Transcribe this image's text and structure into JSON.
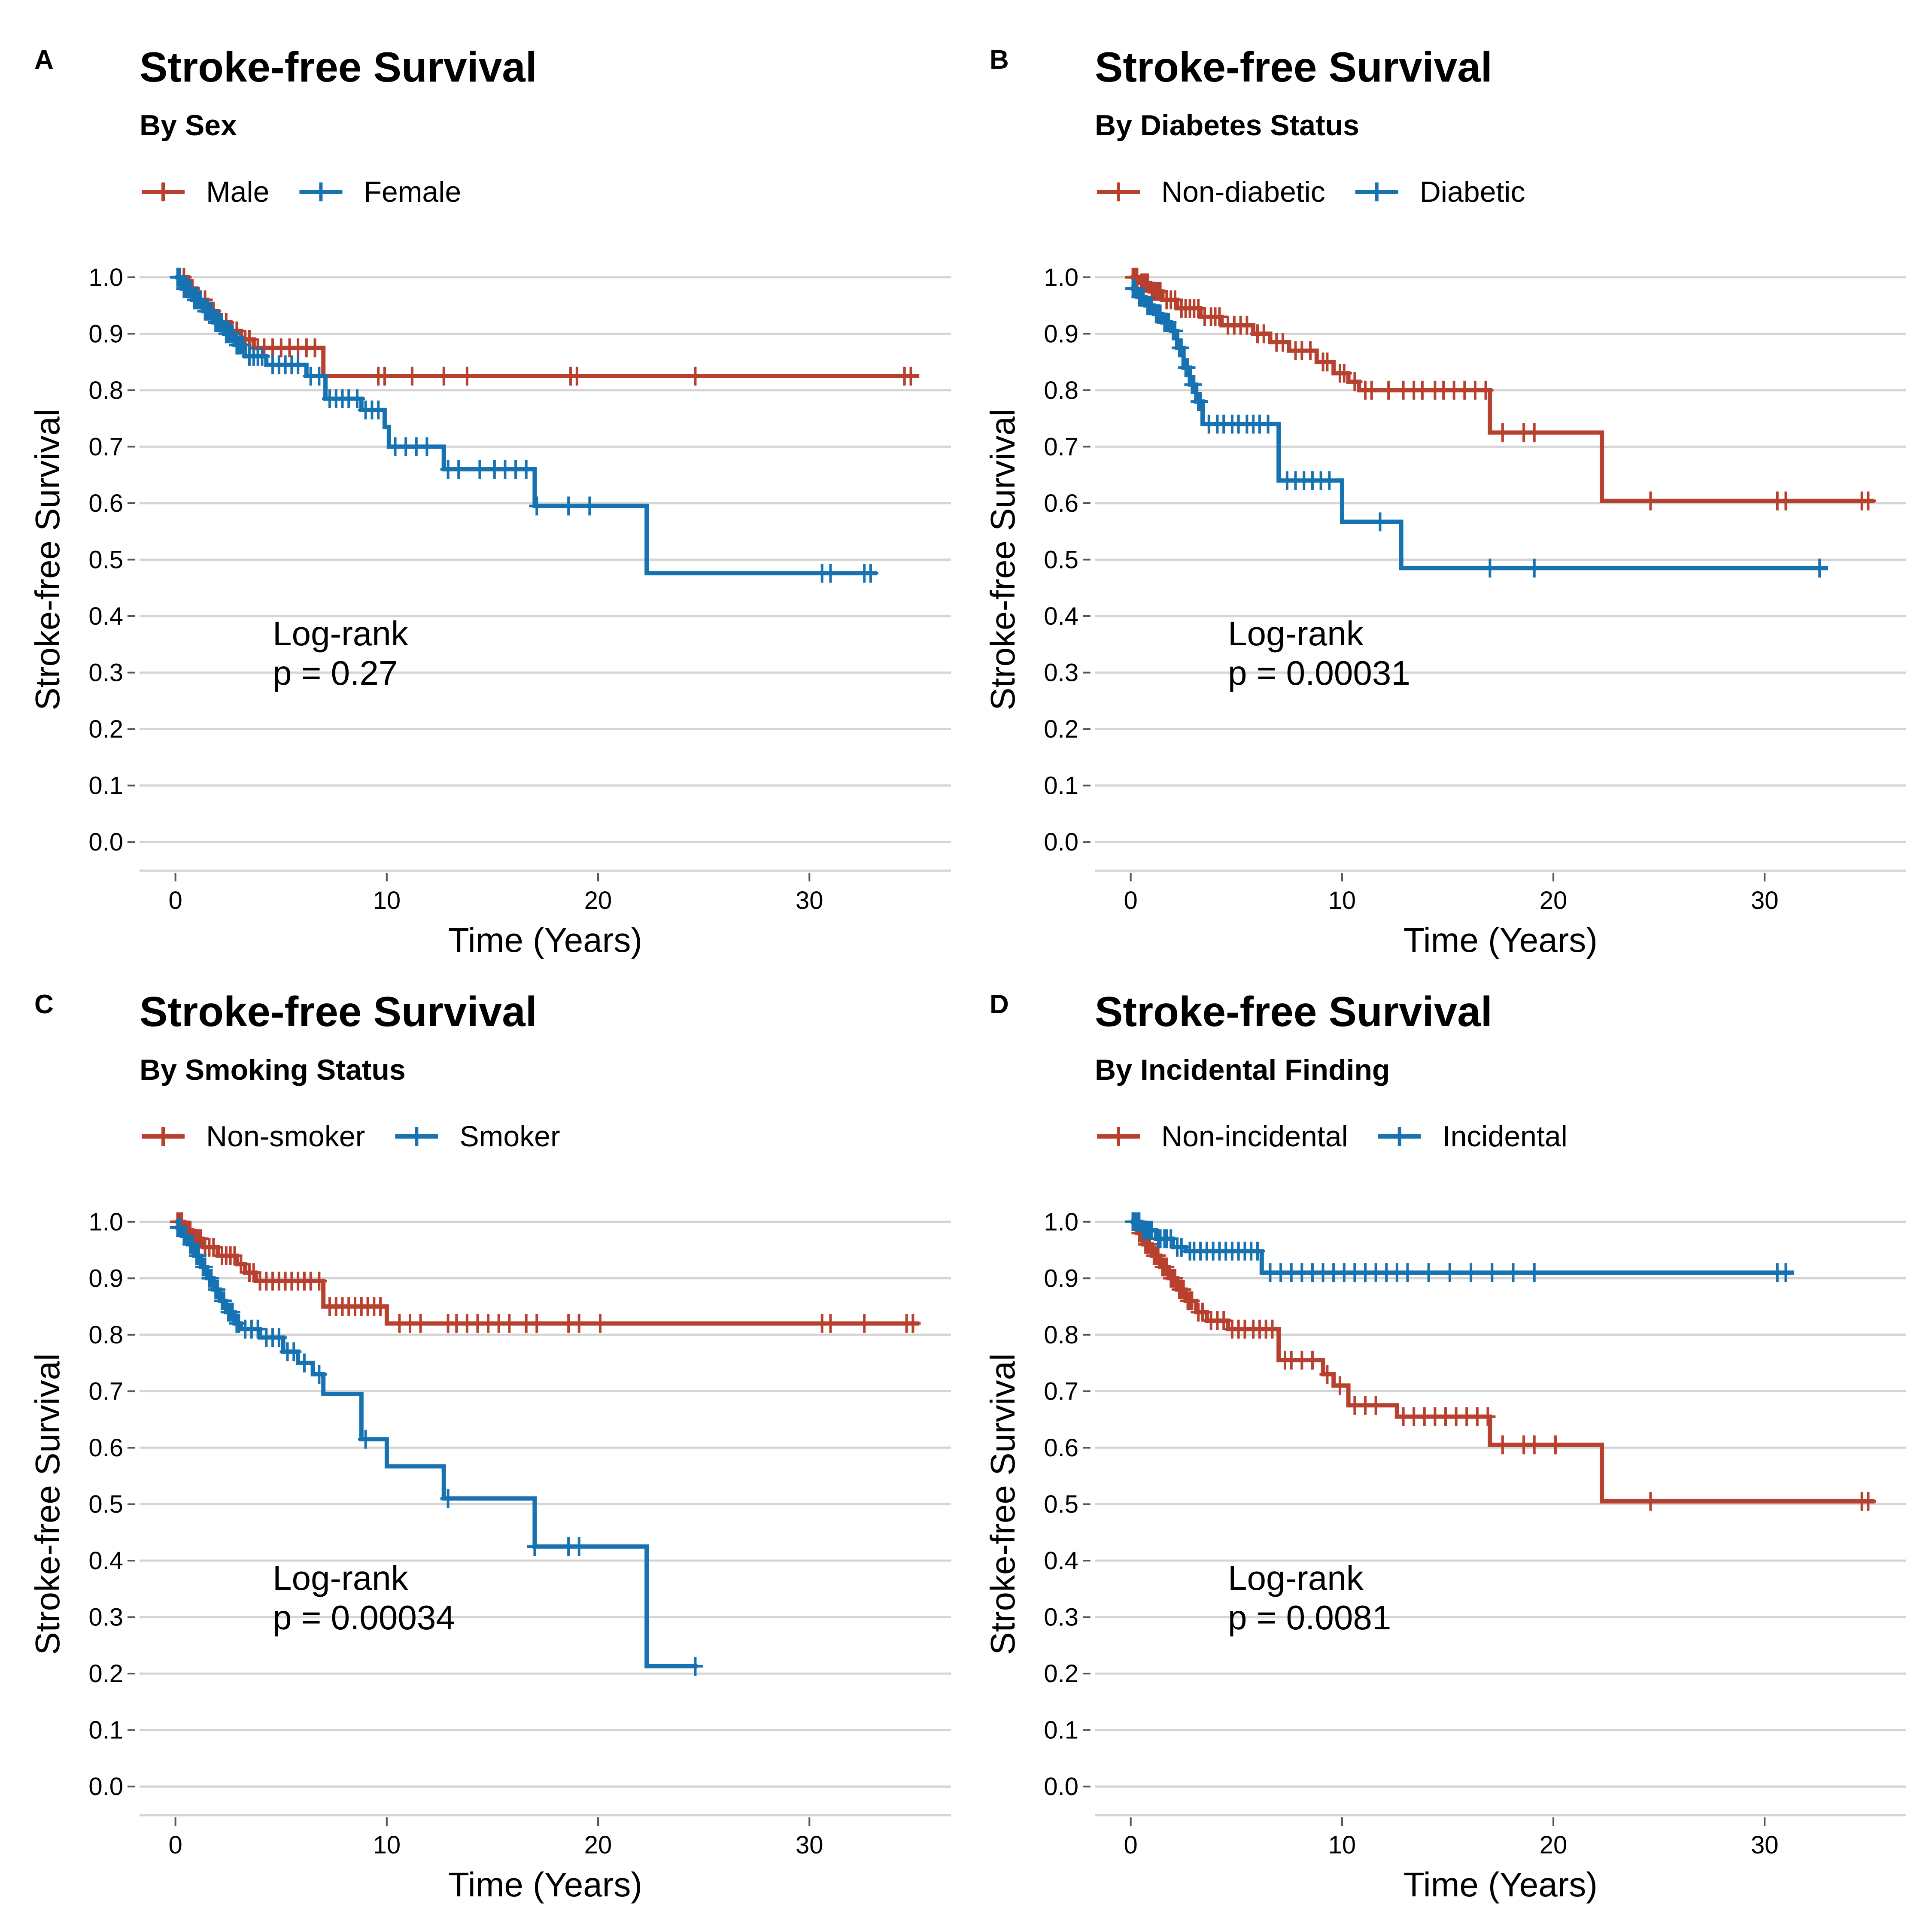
{
  "chart_data": [
    {
      "type": "line",
      "step": true,
      "panel_label": "A",
      "title": "Stroke-free Survival",
      "subtitle": "By Sex",
      "xlabel": "Time (Years)",
      "ylabel": "Stroke-free Survival",
      "xlim": [
        -1.7,
        36.7
      ],
      "ylim": [
        -0.05,
        1.05
      ],
      "x_ticks": [
        0,
        10,
        20,
        30
      ],
      "y_ticks": [
        0.0,
        0.1,
        0.2,
        0.3,
        0.4,
        0.5,
        0.6,
        0.7,
        0.8,
        0.9,
        1.0
      ],
      "grid": "horizontal",
      "legend_position": "top-left",
      "annotation": [
        "Log-rank",
        "p = 0.27"
      ],
      "series": [
        {
          "name": "Male",
          "color": "#B8402F",
          "steps": [
            [
              0,
              1.0
            ],
            [
              0.6,
              0.98
            ],
            [
              1.0,
              0.96
            ],
            [
              1.5,
              0.94
            ],
            [
              2.0,
              0.92
            ],
            [
              2.6,
              0.905
            ],
            [
              3.1,
              0.89
            ],
            [
              3.7,
              0.875
            ],
            [
              7.0,
              0.825
            ],
            [
              35.2,
              0.825
            ]
          ],
          "censors": [
            0.2,
            0.4,
            0.6,
            0.8,
            1.2,
            1.4,
            1.8,
            2.2,
            2.4,
            2.9,
            3.3,
            3.5,
            3.9,
            4.2,
            4.6,
            5.0,
            5.4,
            5.8,
            6.2,
            6.6,
            9.6,
            9.9,
            11.2,
            12.7,
            13.8,
            18.7,
            19.0,
            24.6,
            34.5,
            34.8
          ]
        },
        {
          "name": "Female",
          "color": "#1672B0",
          "steps": [
            [
              0,
              1.0
            ],
            [
              0.3,
              0.98
            ],
            [
              0.8,
              0.96
            ],
            [
              1.3,
              0.94
            ],
            [
              1.8,
              0.92
            ],
            [
              2.3,
              0.9
            ],
            [
              2.8,
              0.88
            ],
            [
              3.3,
              0.86
            ],
            [
              4.3,
              0.845
            ],
            [
              6.2,
              0.825
            ],
            [
              7.1,
              0.785
            ],
            [
              8.8,
              0.765
            ],
            [
              9.9,
              0.735
            ],
            [
              10.1,
              0.7
            ],
            [
              12.7,
              0.66
            ],
            [
              17.0,
              0.595
            ],
            [
              22.3,
              0.476
            ],
            [
              33.2,
              0.476
            ]
          ],
          "censors": [
            0.1,
            0.2,
            0.4,
            0.5,
            0.6,
            0.7,
            0.9,
            1.0,
            1.1,
            1.2,
            1.4,
            1.5,
            1.6,
            1.7,
            1.9,
            2.0,
            2.1,
            2.2,
            2.4,
            2.5,
            2.6,
            2.7,
            2.9,
            3.0,
            3.1,
            3.2,
            3.5,
            3.7,
            3.9,
            4.1,
            4.6,
            4.9,
            5.2,
            5.5,
            5.8,
            6.4,
            6.8,
            7.3,
            7.6,
            7.9,
            8.2,
            8.6,
            9.0,
            9.3,
            9.6,
            10.4,
            10.9,
            11.4,
            11.9,
            12.9,
            13.4,
            14.4,
            15.1,
            15.6,
            16.1,
            16.6,
            17.1,
            18.6,
            19.6,
            30.6,
            31.0,
            32.6,
            32.9
          ]
        }
      ]
    },
    {
      "type": "line",
      "step": true,
      "panel_label": "B",
      "title": "Stroke-free Survival",
      "subtitle": "By Diabetes Status",
      "xlabel": "Time (Years)",
      "ylabel": "Stroke-free Survival",
      "xlim": [
        -1.7,
        36.7
      ],
      "ylim": [
        -0.05,
        1.05
      ],
      "x_ticks": [
        0,
        10,
        20,
        30
      ],
      "y_ticks": [
        0.0,
        0.1,
        0.2,
        0.3,
        0.4,
        0.5,
        0.6,
        0.7,
        0.8,
        0.9,
        1.0
      ],
      "grid": "horizontal",
      "legend_position": "top-left",
      "annotation": [
        "Log-rank",
        "p = 0.00031"
      ],
      "series": [
        {
          "name": "Non-diabetic",
          "color": "#B8402F",
          "steps": [
            [
              0,
              1.0
            ],
            [
              0.4,
              0.99
            ],
            [
              0.9,
              0.975
            ],
            [
              1.5,
              0.96
            ],
            [
              2.2,
              0.945
            ],
            [
              3.3,
              0.93
            ],
            [
              4.3,
              0.915
            ],
            [
              5.8,
              0.9
            ],
            [
              6.6,
              0.885
            ],
            [
              7.5,
              0.87
            ],
            [
              8.8,
              0.85
            ],
            [
              9.6,
              0.83
            ],
            [
              10.3,
              0.815
            ],
            [
              10.8,
              0.8
            ],
            [
              17.0,
              0.725
            ],
            [
              22.3,
              0.604
            ],
            [
              35.2,
              0.604
            ]
          ],
          "censors": [
            0.1,
            0.2,
            0.3,
            0.5,
            0.6,
            0.7,
            0.8,
            1.0,
            1.1,
            1.2,
            1.3,
            1.4,
            1.7,
            1.9,
            2.1,
            2.4,
            2.6,
            2.8,
            3.0,
            3.2,
            3.5,
            3.8,
            4.0,
            4.2,
            4.6,
            4.9,
            5.2,
            5.5,
            6.0,
            6.3,
            6.9,
            7.2,
            7.8,
            8.1,
            8.5,
            9.1,
            9.3,
            9.9,
            10.1,
            10.6,
            11.1,
            11.4,
            12.2,
            12.9,
            13.4,
            13.8,
            14.4,
            14.8,
            15.3,
            15.8,
            16.3,
            16.8,
            17.6,
            18.6,
            19.1,
            24.6,
            30.6,
            31.0,
            34.6,
            34.9
          ]
        },
        {
          "name": "Diabetic",
          "color": "#1672B0",
          "steps": [
            [
              0,
              0.98
            ],
            [
              0.3,
              0.965
            ],
            [
              0.7,
              0.95
            ],
            [
              1.1,
              0.935
            ],
            [
              1.5,
              0.92
            ],
            [
              1.9,
              0.905
            ],
            [
              2.2,
              0.875
            ],
            [
              2.5,
              0.84
            ],
            [
              2.8,
              0.81
            ],
            [
              3.1,
              0.78
            ],
            [
              3.4,
              0.74
            ],
            [
              7.0,
              0.64
            ],
            [
              10.0,
              0.567
            ],
            [
              12.8,
              0.485
            ],
            [
              33.0,
              0.485
            ]
          ],
          "censors": [
            0.1,
            0.2,
            0.4,
            0.5,
            0.6,
            0.8,
            0.9,
            1.0,
            1.2,
            1.3,
            1.4,
            1.6,
            1.7,
            1.8,
            2.0,
            2.1,
            2.3,
            2.4,
            2.6,
            2.7,
            2.9,
            3.0,
            3.2,
            3.3,
            3.7,
            4.1,
            4.4,
            4.8,
            5.1,
            5.5,
            5.8,
            6.1,
            6.5,
            7.4,
            7.8,
            8.2,
            8.6,
            9.0,
            9.4,
            11.8,
            17.0,
            19.1,
            32.6
          ]
        }
      ]
    },
    {
      "type": "line",
      "step": true,
      "panel_label": "C",
      "title": "Stroke-free Survival",
      "subtitle": "By Smoking Status",
      "xlabel": "Time (Years)",
      "ylabel": "Stroke-free Survival",
      "xlim": [
        -1.7,
        36.7
      ],
      "ylim": [
        -0.05,
        1.05
      ],
      "x_ticks": [
        0,
        10,
        20,
        30
      ],
      "y_ticks": [
        0.0,
        0.1,
        0.2,
        0.3,
        0.4,
        0.5,
        0.6,
        0.7,
        0.8,
        0.9,
        1.0
      ],
      "grid": "horizontal",
      "legend_position": "top-left",
      "annotation": [
        "Log-rank",
        "p = 0.00034"
      ],
      "series": [
        {
          "name": "Non-smoker",
          "color": "#B8402F",
          "steps": [
            [
              0,
              1.0
            ],
            [
              0.4,
              0.985
            ],
            [
              0.8,
              0.97
            ],
            [
              1.3,
              0.955
            ],
            [
              2.0,
              0.94
            ],
            [
              2.9,
              0.925
            ],
            [
              3.3,
              0.91
            ],
            [
              3.8,
              0.895
            ],
            [
              7.0,
              0.85
            ],
            [
              10.0,
              0.82
            ],
            [
              35.2,
              0.82
            ]
          ],
          "censors": [
            0.1,
            0.2,
            0.3,
            0.5,
            0.6,
            0.7,
            0.9,
            1.0,
            1.1,
            1.2,
            1.4,
            1.6,
            1.8,
            2.2,
            2.4,
            2.6,
            2.8,
            3.1,
            3.5,
            3.7,
            4.0,
            4.3,
            4.6,
            4.9,
            5.2,
            5.5,
            5.8,
            6.1,
            6.4,
            6.8,
            7.3,
            7.6,
            7.9,
            8.2,
            8.5,
            8.8,
            9.1,
            9.4,
            9.7,
            10.6,
            11.1,
            11.6,
            12.9,
            13.3,
            13.8,
            14.3,
            14.8,
            15.3,
            15.8,
            16.6,
            17.1,
            18.6,
            19.1,
            20.1,
            30.6,
            31.0,
            32.6,
            34.6,
            34.9
          ]
        },
        {
          "name": "Smoker",
          "color": "#1672B0",
          "steps": [
            [
              0,
              0.99
            ],
            [
              0.3,
              0.975
            ],
            [
              0.6,
              0.96
            ],
            [
              0.9,
              0.94
            ],
            [
              1.2,
              0.92
            ],
            [
              1.5,
              0.9
            ],
            [
              1.8,
              0.88
            ],
            [
              2.1,
              0.86
            ],
            [
              2.4,
              0.84
            ],
            [
              2.8,
              0.82
            ],
            [
              3.1,
              0.81
            ],
            [
              4.0,
              0.795
            ],
            [
              5.1,
              0.77
            ],
            [
              5.8,
              0.75
            ],
            [
              6.5,
              0.73
            ],
            [
              7.0,
              0.695
            ],
            [
              8.8,
              0.615
            ],
            [
              10.0,
              0.567
            ],
            [
              12.7,
              0.51
            ],
            [
              17.0,
              0.425
            ],
            [
              22.3,
              0.213
            ],
            [
              24.7,
              0.213
            ]
          ],
          "censors": [
            0.1,
            0.2,
            0.4,
            0.5,
            0.7,
            0.8,
            1.0,
            1.1,
            1.3,
            1.4,
            1.6,
            1.7,
            1.9,
            2.0,
            2.2,
            2.3,
            2.5,
            2.6,
            2.7,
            2.9,
            3.0,
            3.3,
            3.6,
            3.9,
            4.3,
            4.6,
            4.9,
            5.3,
            5.6,
            6.1,
            6.8,
            9.0,
            12.9,
            17.0,
            18.6,
            19.1,
            24.6
          ]
        }
      ]
    },
    {
      "type": "line",
      "step": true,
      "panel_label": "D",
      "title": "Stroke-free Survival",
      "subtitle": "By Incidental Finding",
      "xlabel": "Time (Years)",
      "ylabel": "Stroke-free Survival",
      "xlim": [
        -1.7,
        36.7
      ],
      "ylim": [
        -0.05,
        1.05
      ],
      "x_ticks": [
        0,
        10,
        20,
        30
      ],
      "y_ticks": [
        0.0,
        0.1,
        0.2,
        0.3,
        0.4,
        0.5,
        0.6,
        0.7,
        0.8,
        0.9,
        1.0
      ],
      "grid": "horizontal",
      "legend_position": "top-left",
      "annotation": [
        "Log-rank",
        "p = 0.0081"
      ],
      "series": [
        {
          "name": "Non-incidental",
          "color": "#B8402F",
          "steps": [
            [
              0,
              1.0
            ],
            [
              0.3,
              0.98
            ],
            [
              0.6,
              0.96
            ],
            [
              1.0,
              0.94
            ],
            [
              1.4,
              0.92
            ],
            [
              1.8,
              0.9
            ],
            [
              2.2,
              0.88
            ],
            [
              2.6,
              0.86
            ],
            [
              3.1,
              0.84
            ],
            [
              3.6,
              0.825
            ],
            [
              4.6,
              0.81
            ],
            [
              7.0,
              0.755
            ],
            [
              9.1,
              0.73
            ],
            [
              9.6,
              0.71
            ],
            [
              10.3,
              0.675
            ],
            [
              12.6,
              0.655
            ],
            [
              17.0,
              0.605
            ],
            [
              22.3,
              0.505
            ],
            [
              35.2,
              0.505
            ]
          ],
          "censors": [
            0.1,
            0.2,
            0.4,
            0.5,
            0.7,
            0.8,
            0.9,
            1.1,
            1.2,
            1.3,
            1.5,
            1.6,
            1.7,
            1.9,
            2.0,
            2.1,
            2.3,
            2.4,
            2.5,
            2.7,
            2.8,
            2.9,
            3.2,
            3.4,
            3.8,
            4.1,
            4.4,
            4.8,
            5.1,
            5.4,
            5.8,
            6.1,
            6.4,
            6.7,
            7.3,
            7.6,
            8.1,
            8.6,
            9.3,
            9.9,
            10.6,
            11.1,
            11.6,
            12.9,
            13.4,
            13.9,
            14.4,
            14.9,
            15.4,
            15.9,
            16.4,
            16.9,
            17.6,
            18.6,
            19.1,
            20.1,
            24.6,
            34.6,
            34.9
          ]
        },
        {
          "name": "Incidental",
          "color": "#1672B0",
          "steps": [
            [
              0,
              1.0
            ],
            [
              0.5,
              0.985
            ],
            [
              1.2,
              0.97
            ],
            [
              2.0,
              0.955
            ],
            [
              2.6,
              0.948
            ],
            [
              6.2,
              0.91
            ],
            [
              31.4,
              0.91
            ]
          ],
          "censors": [
            0.1,
            0.2,
            0.3,
            0.4,
            0.6,
            0.7,
            0.8,
            0.9,
            1.0,
            1.3,
            1.4,
            1.6,
            1.7,
            1.9,
            2.2,
            2.4,
            2.8,
            3.0,
            3.3,
            3.6,
            3.9,
            4.2,
            4.5,
            4.8,
            5.1,
            5.4,
            5.7,
            6.0,
            6.6,
            7.1,
            7.6,
            8.1,
            8.6,
            9.1,
            9.6,
            10.1,
            10.6,
            11.1,
            11.6,
            12.1,
            12.6,
            13.1,
            14.1,
            15.1,
            16.1,
            17.1,
            18.1,
            19.1,
            30.6,
            31.0
          ]
        }
      ]
    }
  ]
}
